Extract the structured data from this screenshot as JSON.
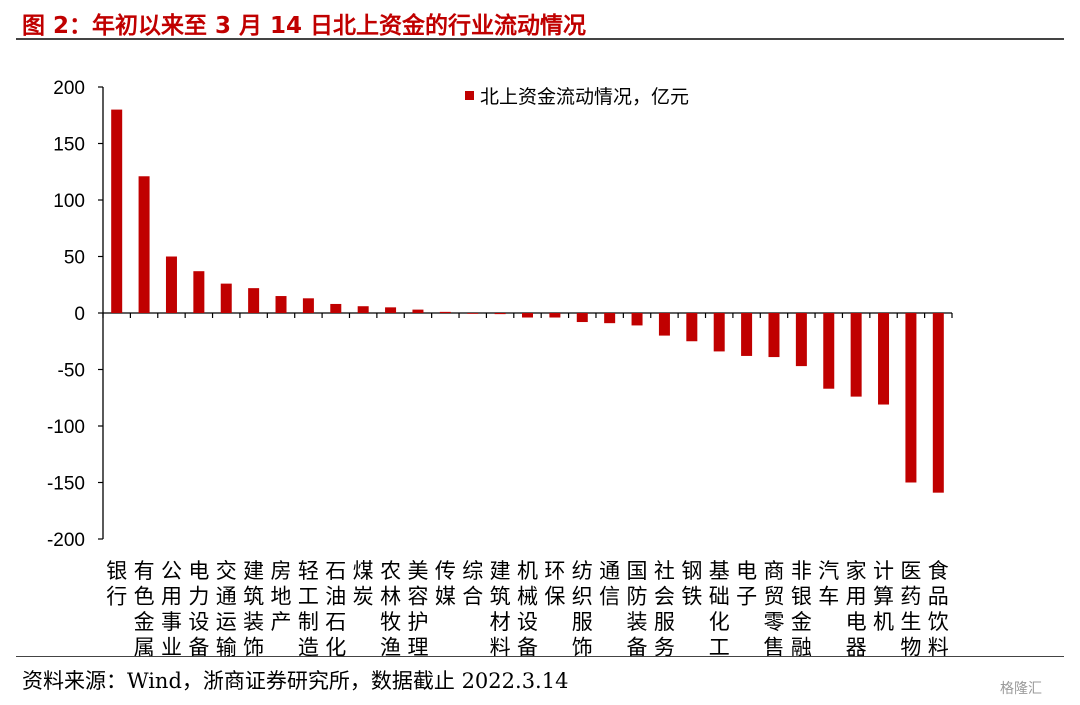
{
  "header": {
    "title": "图 2：年初以来至 3 月 14 日北上资金的行业流动情况"
  },
  "footer": {
    "source": "资料来源：Wind，浙商证券研究所，数据截止 2022.3.14",
    "watermark": "格隆汇"
  },
  "chart_data": {
    "type": "bar",
    "title": "",
    "xlabel": "",
    "ylabel": "",
    "ylim": [
      -200,
      200
    ],
    "yticks": [
      200,
      150,
      100,
      50,
      0,
      -50,
      -100,
      -150,
      -200
    ],
    "grid": false,
    "legend_position": "top-center",
    "bar_color": "#c00000",
    "categories": [
      "银行",
      "有色金属",
      "公用事业",
      "电力设备",
      "交通运输",
      "建筑装饰",
      "房地产",
      "轻工制造",
      "石油石化",
      "煤炭",
      "农林牧渔",
      "美容护理",
      "传媒",
      "综合",
      "建筑材料",
      "机械设备",
      "环保",
      "纺织服饰",
      "通信",
      "国防装备",
      "社会服务",
      "钢铁",
      "基础化工",
      "电子",
      "商贸零售",
      "非银金融",
      "汽车",
      "家用电器",
      "计算机",
      "医药生物",
      "食品饮料"
    ],
    "series": [
      {
        "name": "北上资金流动情况，亿元",
        "values": [
          180,
          121,
          50,
          37,
          26,
          22,
          15,
          13,
          8,
          6,
          5,
          3,
          1,
          0,
          -1,
          -4,
          -4,
          -8,
          -9,
          -11,
          -20,
          -25,
          -34,
          -38,
          -39,
          -47,
          -67,
          -74,
          -81,
          -150,
          -159
        ]
      }
    ]
  }
}
